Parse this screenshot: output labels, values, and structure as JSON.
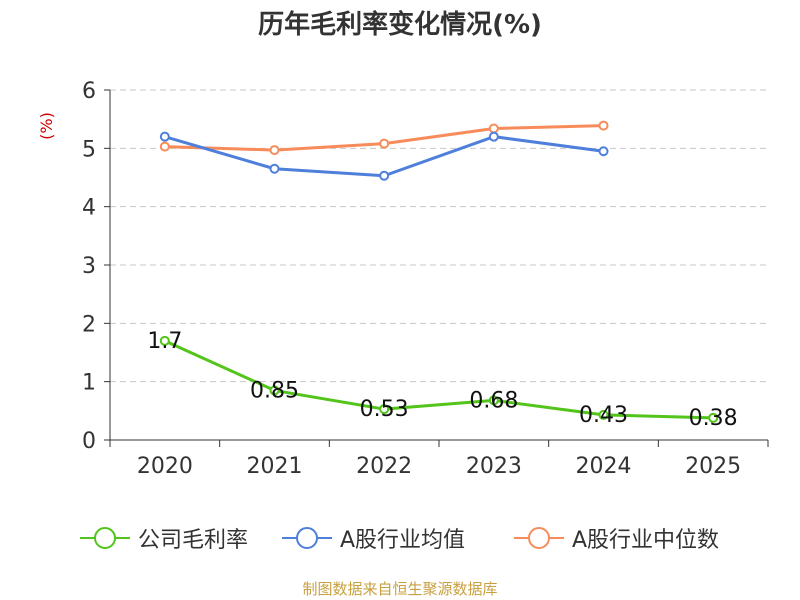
{
  "chart_data": {
    "type": "line",
    "title": "历年毛利率变化情况(%)",
    "ylabel": "(%)",
    "xlabel": "",
    "categories": [
      "2020",
      "2021",
      "2022",
      "2023",
      "2024",
      "2025"
    ],
    "ylim": [
      0,
      6
    ],
    "yticks": [
      0,
      1,
      2,
      3,
      4,
      5,
      6
    ],
    "grid": true,
    "legend_position": "bottom",
    "series": [
      {
        "name": "公司毛利率",
        "color": "#52c41a",
        "values": [
          1.7,
          0.85,
          0.53,
          0.68,
          0.43,
          0.38
        ],
        "data_labels": [
          "1.7",
          "0.85",
          "0.53",
          "0.68",
          "0.43",
          "0.38"
        ]
      },
      {
        "name": "A股行业均值",
        "color": "#4e7fdb",
        "values": [
          5.2,
          4.65,
          4.53,
          5.2,
          4.95,
          null
        ]
      },
      {
        "name": "A股行业中位数",
        "color": "#f78c5a",
        "values": [
          5.03,
          4.97,
          5.08,
          5.34,
          5.39,
          null
        ]
      }
    ]
  },
  "ylabel_color": "#cc0000",
  "source_note": "制图数据来自恒生聚源数据库",
  "source_note_color": "#c8a040"
}
